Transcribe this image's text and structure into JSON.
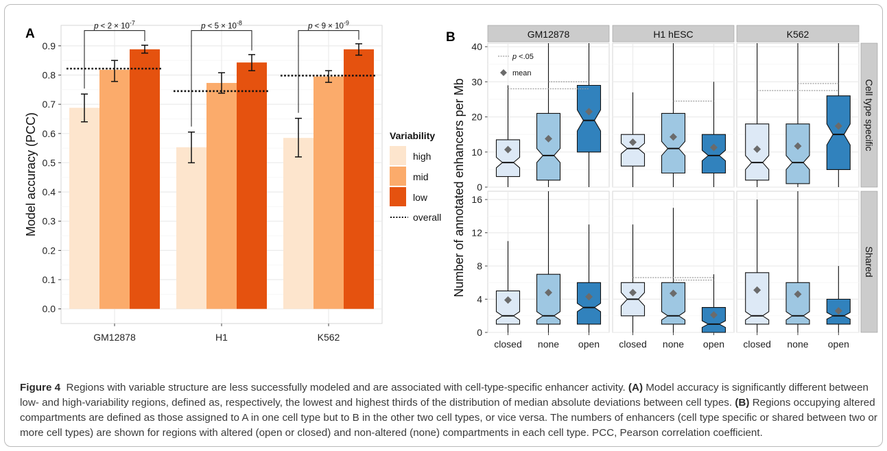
{
  "panel_a_letter": "A",
  "panel_b_letter": "B",
  "caption": {
    "figure_label": "Figure 4",
    "text1": "Regions with variable structure are less successfully modeled and are associated with cell-type-specific enhancer activity.",
    "label_a": "(A)",
    "text2": "Model accuracy is significantly different between low- and high-variability regions, defined as, respectively, the lowest and highest thirds of the distribution of median absolute deviations between cell types.",
    "label_b": "(B)",
    "text3": "Regions occupying altered compartments are defined as those assigned to A in one cell type but to B in the other two cell types, or vice versa. The numbers of enhancers (cell type specific or shared between two or more cell types) are shown for regions with altered (open or closed) and non-altered (none) compartments in each cell type. PCC, Pearson correlation coefficient."
  },
  "colors": {
    "high": "#fde5cd",
    "mid": "#fbab6b",
    "low": "#e5520f",
    "closed": "#dde9f6",
    "none": "#9ec7e2",
    "open": "#3182bd",
    "strip": "#cccccc",
    "mean": "#6b6b6b"
  },
  "chart_data": [
    {
      "type": "bar",
      "ylabel": "Model accuracy (PCC)",
      "categories": [
        "GM12878",
        "H1",
        "K562"
      ],
      "ylim": [
        -0.05,
        0.97
      ],
      "yticks": [
        "0.0",
        "0.1",
        "0.2",
        "0.3",
        "0.4",
        "0.5",
        "0.6",
        "0.7",
        "0.8",
        "0.9"
      ],
      "legend_title": "Variability",
      "legend_placement": "right",
      "series": [
        {
          "name": "high",
          "values": [
            0.688,
            0.553,
            0.585
          ],
          "err_low": [
            0.64,
            0.5,
            0.52
          ],
          "err_high": [
            0.735,
            0.605,
            0.652
          ]
        },
        {
          "name": "mid",
          "values": [
            0.818,
            0.773,
            0.795
          ],
          "err_low": [
            0.778,
            0.738,
            0.775
          ],
          "err_high": [
            0.85,
            0.808,
            0.815
          ]
        },
        {
          "name": "low",
          "values": [
            0.888,
            0.843,
            0.888
          ],
          "err_low": [
            0.875,
            0.815,
            0.868
          ],
          "err_high": [
            0.902,
            0.87,
            0.907
          ]
        }
      ],
      "overall": {
        "name": "overall",
        "values": [
          0.822,
          0.745,
          0.798
        ]
      },
      "annotations": [
        {
          "category": "GM12878",
          "base": "p < 2 × 10",
          "exp": "-7"
        },
        {
          "category": "H1",
          "base": "p < 5 × 10",
          "exp": "-8"
        },
        {
          "category": "K562",
          "base": "p < 9 × 10",
          "exp": "-9"
        }
      ],
      "grid": true
    },
    {
      "type": "box",
      "ylabel": "Number of annotated enhancers per Mb",
      "facet_columns": [
        "GM12878",
        "H1 hESC",
        "K562"
      ],
      "facet_rows": [
        "Cell type specific",
        "Shared"
      ],
      "categories": [
        "closed",
        "none",
        "open"
      ],
      "legend": {
        "pval": "p <.05",
        "mean": "mean"
      },
      "rows": [
        {
          "name": "Cell type specific",
          "ylim": [
            0,
            41
          ],
          "yticks": [
            0,
            10,
            20,
            30,
            40
          ],
          "panels": [
            {
              "facet": "GM12878",
              "boxes": [
                {
                  "q1": 3,
                  "median": 7,
                  "q3": 13.5,
                  "whisker_low": 0,
                  "whisker_high": 29,
                  "notch_low": 5.5,
                  "notch_high": 8.5,
                  "mean": 10.7
                },
                {
                  "q1": 2,
                  "median": 9,
                  "q3": 21,
                  "whisker_low": 0,
                  "whisker_high": 41,
                  "notch_low": 7,
                  "notch_high": 11,
                  "mean": 13.8
                },
                {
                  "q1": 10,
                  "median": 19,
                  "q3": 29,
                  "whisker_low": 0,
                  "whisker_high": 41,
                  "notch_low": 16,
                  "notch_high": 22,
                  "mean": 21.5
                }
              ],
              "pvals": [
                {
                  "from": 0,
                  "to": 2,
                  "y": 28
                },
                {
                  "from": 1,
                  "to": 2,
                  "y": 30
                }
              ]
            },
            {
              "facet": "H1 hESC",
              "boxes": [
                {
                  "q1": 6,
                  "median": 11,
                  "q3": 15,
                  "whisker_low": 0,
                  "whisker_high": 27,
                  "notch_low": 9.5,
                  "notch_high": 12.5,
                  "mean": 12.8
                },
                {
                  "q1": 4,
                  "median": 11,
                  "q3": 21,
                  "whisker_low": 0,
                  "whisker_high": 41,
                  "notch_low": 9,
                  "notch_high": 13,
                  "mean": 14.3
                },
                {
                  "q1": 4,
                  "median": 9,
                  "q3": 15,
                  "whisker_low": 0,
                  "whisker_high": 30,
                  "notch_low": 7.5,
                  "notch_high": 10.5,
                  "mean": 11.3
                }
              ],
              "pvals": [
                {
                  "from": 1,
                  "to": 2,
                  "y": 24.5
                }
              ]
            },
            {
              "facet": "K562",
              "boxes": [
                {
                  "q1": 2,
                  "median": 7,
                  "q3": 18,
                  "whisker_low": 0,
                  "whisker_high": 41,
                  "notch_low": 5,
                  "notch_high": 9,
                  "mean": 10.8
                },
                {
                  "q1": 1,
                  "median": 7,
                  "q3": 18,
                  "whisker_low": 0,
                  "whisker_high": 41,
                  "notch_low": 5,
                  "notch_high": 9,
                  "mean": 11.7
                },
                {
                  "q1": 5,
                  "median": 15,
                  "q3": 26,
                  "whisker_low": 0,
                  "whisker_high": 41,
                  "notch_low": 12,
                  "notch_high": 18,
                  "mean": 17.4
                }
              ],
              "pvals": [
                {
                  "from": 0,
                  "to": 2,
                  "y": 27.5
                },
                {
                  "from": 1,
                  "to": 2,
                  "y": 29.5
                }
              ]
            }
          ]
        },
        {
          "name": "Shared",
          "ylim": [
            0,
            17
          ],
          "yticks": [
            0,
            4,
            8,
            12,
            16
          ],
          "panels": [
            {
              "facet": "GM12878",
              "boxes": [
                {
                  "q1": 1,
                  "median": 2,
                  "q3": 5,
                  "whisker_low": 0,
                  "whisker_high": 11,
                  "notch_low": 1.5,
                  "notch_high": 2.5,
                  "mean": 3.9
                },
                {
                  "q1": 1,
                  "median": 2,
                  "q3": 7,
                  "whisker_low": 0,
                  "whisker_high": 17,
                  "notch_low": 1.5,
                  "notch_high": 2.5,
                  "mean": 4.8
                },
                {
                  "q1": 1,
                  "median": 3,
                  "q3": 6,
                  "whisker_low": 0,
                  "whisker_high": 13,
                  "notch_low": 2.5,
                  "notch_high": 3.5,
                  "mean": 4.3
                }
              ],
              "pvals": []
            },
            {
              "facet": "H1 hESC",
              "boxes": [
                {
                  "q1": 2,
                  "median": 4,
                  "q3": 6,
                  "whisker_low": 0,
                  "whisker_high": 13,
                  "notch_low": 3.2,
                  "notch_high": 4.8,
                  "mean": 4.8
                },
                {
                  "q1": 1,
                  "median": 2,
                  "q3": 6,
                  "whisker_low": 0,
                  "whisker_high": 15,
                  "notch_low": 1.5,
                  "notch_high": 2.5,
                  "mean": 4.7
                },
                {
                  "q1": 0,
                  "median": 1,
                  "q3": 3,
                  "whisker_low": 0,
                  "whisker_high": 7,
                  "notch_low": 0.6,
                  "notch_high": 1.4,
                  "mean": 2.1
                }
              ],
              "pvals": [
                {
                  "from": 0,
                  "to": 2,
                  "y": 6.6
                },
                {
                  "from": 1,
                  "to": 2,
                  "y": 6.3
                }
              ]
            },
            {
              "facet": "K562",
              "boxes": [
                {
                  "q1": 1,
                  "median": 2,
                  "q3": 7.2,
                  "whisker_low": 0,
                  "whisker_high": 16,
                  "notch_low": 1.5,
                  "notch_high": 2.5,
                  "mean": 5.1
                },
                {
                  "q1": 1,
                  "median": 2,
                  "q3": 6,
                  "whisker_low": 0,
                  "whisker_high": 17,
                  "notch_low": 1.5,
                  "notch_high": 2.5,
                  "mean": 4.6
                },
                {
                  "q1": 1,
                  "median": 2,
                  "q3": 4,
                  "whisker_low": 0,
                  "whisker_high": 8,
                  "notch_low": 1.6,
                  "notch_high": 2.4,
                  "mean": 2.6
                }
              ],
              "pvals": []
            }
          ]
        }
      ]
    }
  ]
}
